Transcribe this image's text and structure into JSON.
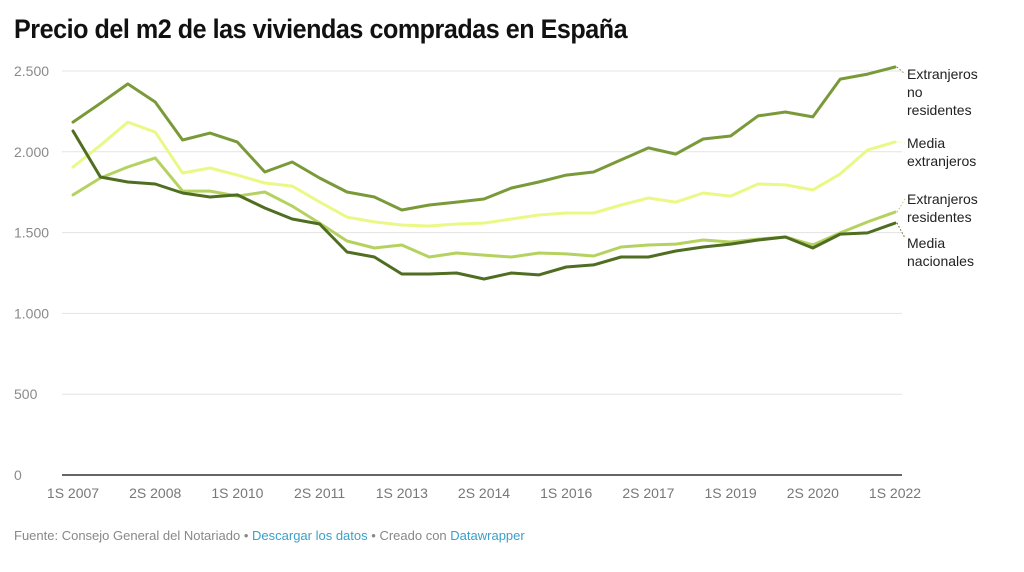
{
  "title": "Precio del m2 de las viviendas compradas en España",
  "footer": {
    "source": "Fuente: Consejo General del Notariado",
    "separator": "•",
    "download_link": "Descargar los datos",
    "created_with": "Creado con",
    "tool_link": "Datawrapper"
  },
  "chart_data": {
    "type": "line",
    "title": "Precio del m2 de las viviendas compradas en España",
    "xlabel": "",
    "ylabel": "",
    "ylim": [
      0,
      2500
    ],
    "yticks": [
      0,
      500,
      1000,
      1500,
      2000,
      2500
    ],
    "ytick_labels": [
      "0",
      "500",
      "1.000",
      "1.500",
      "2.000",
      "2.500"
    ],
    "grid": true,
    "legend": "direct-labels-right",
    "x": [
      "1S 2007",
      "2S 2007",
      "1S 2008",
      "2S 2008",
      "1S 2009",
      "2S 2009",
      "1S 2010",
      "2S 2010",
      "1S 2011",
      "2S 2011",
      "1S 2012",
      "2S 2012",
      "1S 2013",
      "2S 2013",
      "1S 2014",
      "2S 2014",
      "1S 2015",
      "2S 2015",
      "1S 2016",
      "2S 2016",
      "1S 2017",
      "2S 2017",
      "1S 2018",
      "2S 2018",
      "1S 2019",
      "2S 2019",
      "1S 2020",
      "2S 2020",
      "1S 2021",
      "2S 2021",
      "1S 2022"
    ],
    "xtick_labels": [
      "1S 2007",
      "2S 2008",
      "1S 2010",
      "2S 2011",
      "1S 2013",
      "2S 2014",
      "1S 2016",
      "2S 2017",
      "1S 2019",
      "2S 2020",
      "1S 2022"
    ],
    "series": [
      {
        "name": "Extranjeros no residentes",
        "label_lines": [
          "Extranjeros",
          "no",
          "residentes"
        ],
        "color": "#7a9a3a",
        "values": [
          2184,
          2300,
          2420,
          2308,
          2073,
          2116,
          2060,
          1875,
          1937,
          1838,
          1751,
          1720,
          1640,
          1671,
          1689,
          1708,
          1776,
          1813,
          1856,
          1875,
          1950,
          2024,
          1986,
          2079,
          2098,
          2222,
          2246,
          2216,
          2450,
          2481,
          2525
        ]
      },
      {
        "name": "Media extranjeros",
        "label_lines": [
          "Media",
          "extranjeros"
        ],
        "color": "#eaf986",
        "values": [
          1906,
          2040,
          2184,
          2122,
          1869,
          1900,
          1856,
          1807,
          1788,
          1690,
          1596,
          1566,
          1547,
          1541,
          1553,
          1559,
          1584,
          1609,
          1621,
          1621,
          1671,
          1714,
          1689,
          1745,
          1726,
          1801,
          1795,
          1764,
          1863,
          2011,
          2061
        ]
      },
      {
        "name": "Extranjeros residentes",
        "label_lines": [
          "Extranjeros",
          "residentes"
        ],
        "color": "#b5d260",
        "values": [
          1733,
          1838,
          1906,
          1962,
          1757,
          1757,
          1726,
          1751,
          1664,
          1559,
          1448,
          1405,
          1423,
          1349,
          1374,
          1361,
          1349,
          1374,
          1368,
          1355,
          1411,
          1423,
          1429,
          1454,
          1442,
          1460,
          1473,
          1423,
          1498,
          1566,
          1627
        ]
      },
      {
        "name": "Media nacionales",
        "label_lines": [
          "Media",
          "nacionales"
        ],
        "color": "#4f6e22",
        "values": [
          2129,
          1844,
          1813,
          1801,
          1745,
          1720,
          1733,
          1652,
          1584,
          1553,
          1380,
          1349,
          1244,
          1244,
          1250,
          1213,
          1250,
          1238,
          1287,
          1300,
          1349,
          1349,
          1386,
          1411,
          1429,
          1454,
          1473,
          1405,
          1491,
          1498,
          1559
        ]
      }
    ]
  }
}
